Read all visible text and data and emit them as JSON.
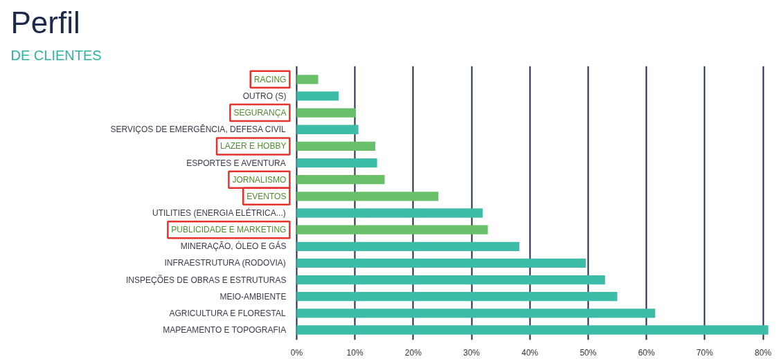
{
  "chart_data": {
    "type": "bar",
    "orientation": "horizontal",
    "title": "Perfil",
    "subtitle": "DE CLIENTES",
    "categories": [
      "RACING",
      "OUTRO (S)",
      "SEGURANÇA",
      "SERVIÇOS DE EMERGÊNCIA, DEFESA CIVIL",
      "LAZER E HOBBY",
      "ESPORTES E AVENTURA",
      "JORNALISMO",
      "EVENTOS",
      "UTILITIES (ENERGIA ELÉTRICA...)",
      "PUBLICIDADE E MARKETING",
      "MINERAÇÃO, ÓLEO E GÁS",
      "INFRAESTRUTURA (RODOVIA)",
      "INSPEÇÕES DE OBRAS E ESTRUTURAS",
      "MEIO-AMBIENTE",
      "AGRICULTURA E FLORESTAL",
      "MAPEAMENTO E TOPOGRAFIA"
    ],
    "values": [
      3.7,
      7.2,
      10.1,
      10.6,
      13.5,
      13.8,
      15.1,
      24.3,
      31.9,
      32.8,
      38.2,
      49.6,
      52.9,
      55.0,
      61.5,
      80.9
    ],
    "colors": [
      "#6abf6b",
      "#3dbca8",
      "#6abf6b",
      "#3dbca8",
      "#6abf6b",
      "#3dbca8",
      "#6abf6b",
      "#6abf6b",
      "#3dbca8",
      "#6abf6b",
      "#3dbca8",
      "#3dbca8",
      "#3dbca8",
      "#3dbca8",
      "#3dbca8",
      "#3dbca8"
    ],
    "xlim": [
      0,
      81
    ],
    "xticks": [
      {
        "value": 0,
        "label": "0%"
      },
      {
        "value": 10,
        "label": "10%"
      },
      {
        "value": 20,
        "label": "20%"
      },
      {
        "value": 30,
        "label": "30%"
      },
      {
        "value": 40,
        "label": "40%"
      },
      {
        "value": 50,
        "label": "50%"
      },
      {
        "value": 60,
        "label": "60%"
      },
      {
        "value": 70,
        "label": "70%"
      },
      {
        "value": 80,
        "label": "80%"
      }
    ],
    "grid": "x"
  }
}
